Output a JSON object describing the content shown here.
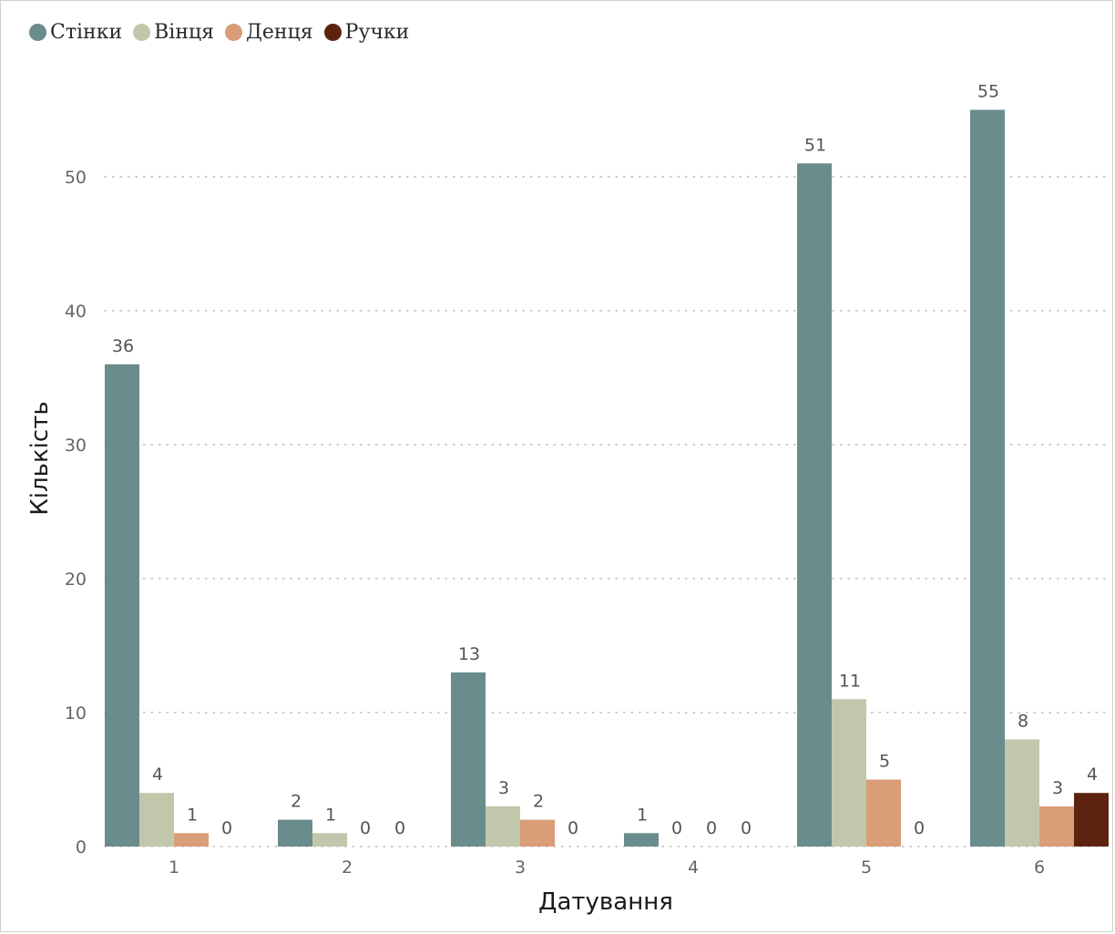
{
  "chart_data": {
    "type": "bar",
    "title": "",
    "xlabel": "Датування",
    "ylabel": "Кількість",
    "categories": [
      "1",
      "2",
      "3",
      "4",
      "5",
      "6"
    ],
    "series": [
      {
        "name": "Стінки",
        "color": "#6b8c8c",
        "values": [
          36,
          2,
          13,
          1,
          51,
          55
        ]
      },
      {
        "name": "Вінця",
        "color": "#c2c7ab",
        "values": [
          4,
          1,
          3,
          0,
          11,
          8
        ]
      },
      {
        "name": "Денця",
        "color": "#d99d78",
        "values": [
          1,
          0,
          2,
          0,
          5,
          3
        ]
      },
      {
        "name": "Ручки",
        "color": "#5c2410",
        "values": [
          0,
          0,
          0,
          0,
          0,
          4
        ]
      }
    ],
    "ylim": [
      0,
      55
    ],
    "yticks": [
      "0",
      "10",
      "20",
      "30",
      "40",
      "50"
    ],
    "grid": "horizontal-dotted",
    "legend": "top-left"
  }
}
